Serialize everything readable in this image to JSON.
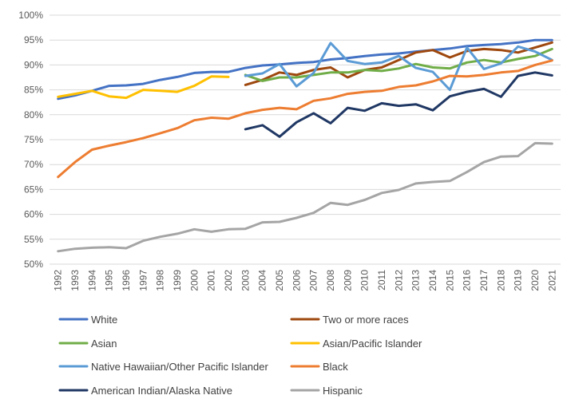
{
  "chart_data": {
    "type": "line",
    "title": "",
    "xlabel": "",
    "ylabel": "",
    "ylim": [
      50,
      100
    ],
    "y_tick_labels": [
      "50%",
      "55%",
      "60%",
      "65%",
      "70%",
      "75%",
      "80%",
      "85%",
      "90%",
      "95%",
      "100%"
    ],
    "grid": true,
    "legend_position": "bottom",
    "x": [
      1992,
      1993,
      1994,
      1995,
      1996,
      1997,
      1998,
      1999,
      2000,
      2001,
      2002,
      2003,
      2004,
      2005,
      2006,
      2007,
      2008,
      2009,
      2010,
      2011,
      2012,
      2013,
      2014,
      2015,
      2016,
      2017,
      2018,
      2019,
      2020,
      2021
    ],
    "series": [
      {
        "name": "White",
        "color": "#4472c4",
        "values": [
          83.2,
          83.9,
          84.8,
          85.8,
          85.9,
          86.2,
          87.0,
          87.6,
          88.4,
          88.6,
          88.6,
          89.4,
          89.9,
          90.1,
          90.4,
          90.6,
          91.1,
          91.4,
          91.8,
          92.1,
          92.3,
          92.7,
          93.0,
          93.3,
          93.8,
          94.0,
          94.2,
          94.5,
          95.0,
          95.0
        ]
      },
      {
        "name": "Two or more races",
        "color": "#9e480e",
        "values": [
          null,
          null,
          null,
          null,
          null,
          null,
          null,
          null,
          null,
          null,
          null,
          86.0,
          87.0,
          88.5,
          88.0,
          89.0,
          89.5,
          87.5,
          89.0,
          89.5,
          91.0,
          92.5,
          93.0,
          91.5,
          92.8,
          93.2,
          93.0,
          92.5,
          93.5,
          94.5
        ]
      },
      {
        "name": "Asian",
        "color": "#70ad47",
        "values": [
          null,
          null,
          null,
          null,
          null,
          null,
          null,
          null,
          null,
          null,
          null,
          88.0,
          86.8,
          87.5,
          87.5,
          88.0,
          88.5,
          88.5,
          89.0,
          88.8,
          89.3,
          90.2,
          89.5,
          89.3,
          90.5,
          91.0,
          90.5,
          91.2,
          91.8,
          93.2
        ]
      },
      {
        "name": "Asian/Pacific Islander",
        "color": "#ffc000",
        "values": [
          83.6,
          84.2,
          84.8,
          83.7,
          83.4,
          85.0,
          84.8,
          84.6,
          85.8,
          87.7,
          87.6,
          null,
          null,
          null,
          null,
          null,
          null,
          null,
          null,
          null,
          null,
          null,
          null,
          null,
          null,
          null,
          null,
          null,
          null,
          null
        ]
      },
      {
        "name": "Native Hawaiian/Other Pacific Islander",
        "color": "#5b9bd5",
        "values": [
          null,
          null,
          null,
          null,
          null,
          null,
          null,
          null,
          null,
          null,
          null,
          87.8,
          88.3,
          90.2,
          85.7,
          88.4,
          94.4,
          90.8,
          90.2,
          90.5,
          91.8,
          89.4,
          88.6,
          85.0,
          93.5,
          89.2,
          90.3,
          93.7,
          92.7,
          91.0
        ]
      },
      {
        "name": "Black",
        "color": "#ed7d31",
        "values": [
          67.5,
          70.5,
          73.0,
          73.8,
          74.5,
          75.3,
          76.3,
          77.3,
          78.9,
          79.4,
          79.2,
          80.3,
          81.0,
          81.4,
          81.1,
          82.8,
          83.3,
          84.2,
          84.6,
          84.8,
          85.6,
          85.9,
          86.7,
          87.8,
          87.7,
          88.0,
          88.5,
          88.8,
          90.0,
          90.9
        ]
      },
      {
        "name": "American Indian/Alaska Native",
        "color": "#203864",
        "values": [
          null,
          null,
          null,
          null,
          null,
          null,
          null,
          null,
          null,
          null,
          null,
          77.1,
          77.9,
          75.6,
          78.5,
          80.3,
          78.3,
          81.4,
          80.8,
          82.3,
          81.8,
          82.1,
          80.9,
          83.7,
          84.6,
          85.2,
          83.6,
          87.8,
          88.5,
          87.9
        ]
      },
      {
        "name": "Hispanic",
        "color": "#a5a5a5",
        "values": [
          52.6,
          53.1,
          53.3,
          53.4,
          53.2,
          54.7,
          55.5,
          56.1,
          57.0,
          56.5,
          57.0,
          57.1,
          58.4,
          58.5,
          59.3,
          60.3,
          62.3,
          61.9,
          62.9,
          64.3,
          64.9,
          66.2,
          66.5,
          66.7,
          68.5,
          70.5,
          71.6,
          71.7,
          74.3,
          74.2
        ]
      }
    ]
  }
}
